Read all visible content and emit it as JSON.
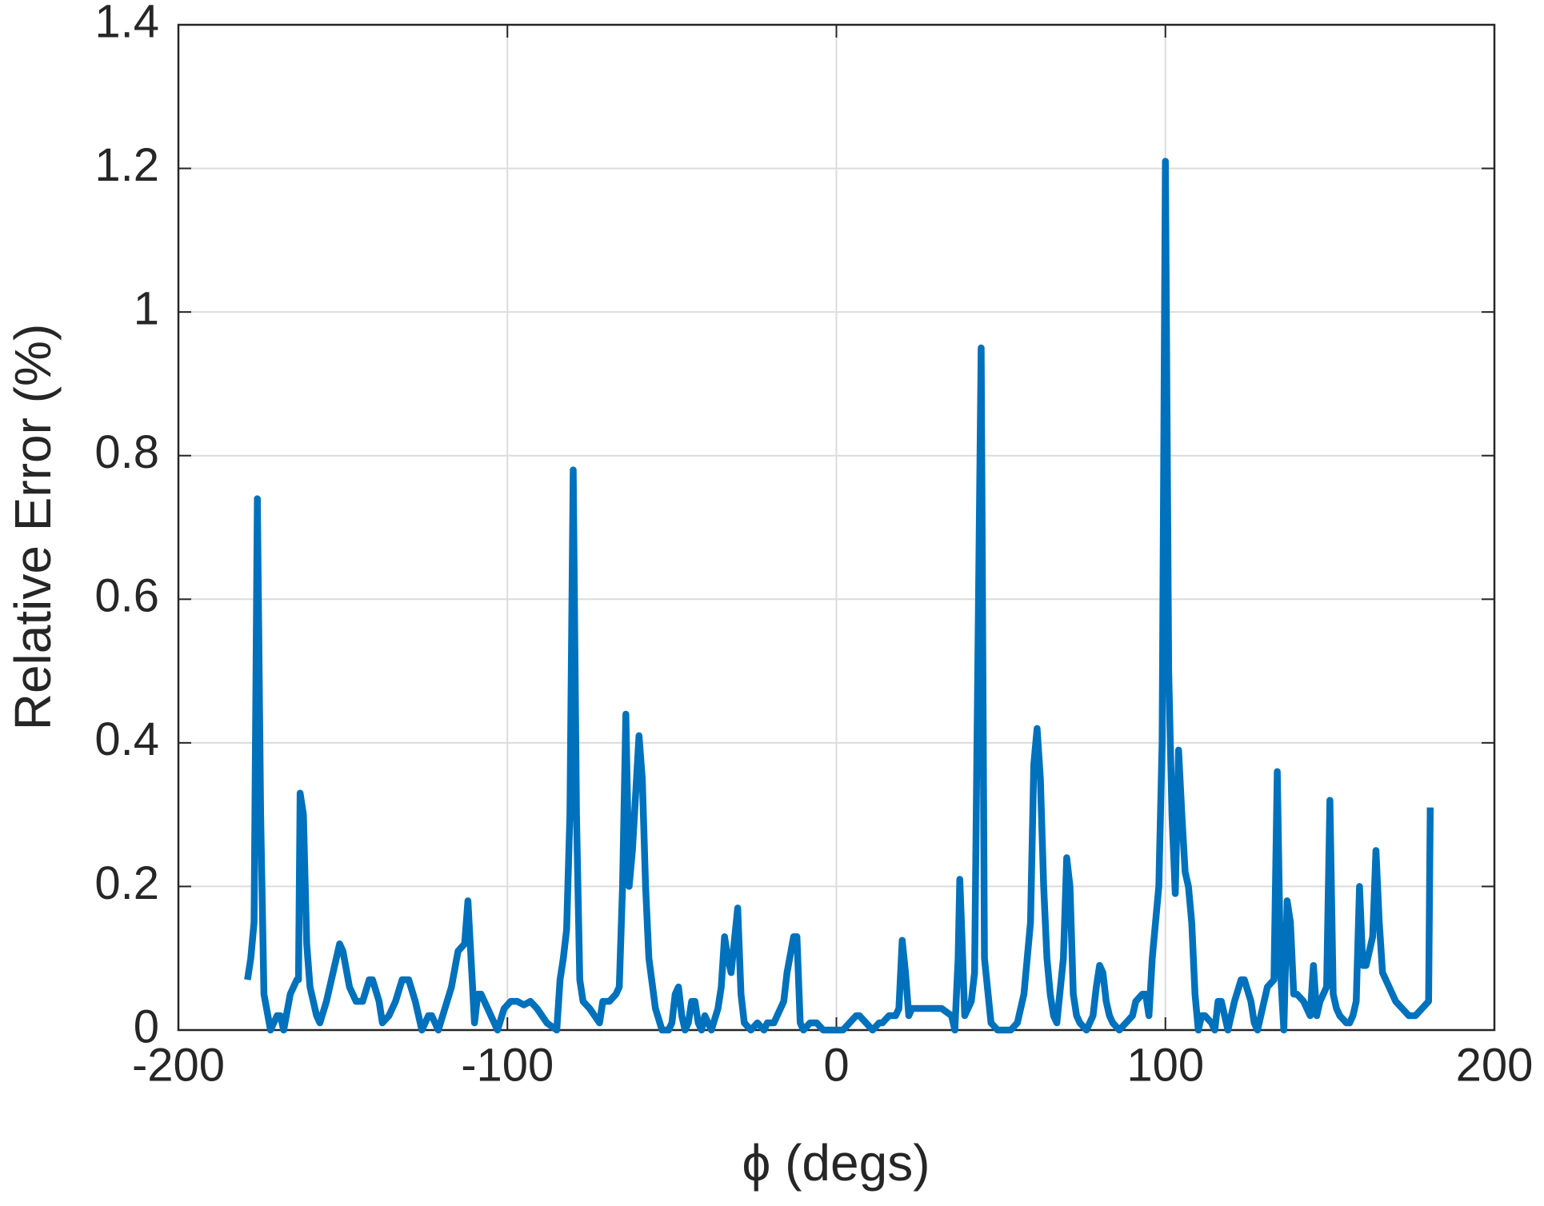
{
  "chart_data": {
    "type": "line",
    "x_label": "ϕ (degs)",
    "y_label": "Relative Error (%)",
    "xlim": [
      -200,
      200
    ],
    "ylim": [
      0,
      1.4
    ],
    "xticks": [
      -200,
      -100,
      0,
      100,
      200
    ],
    "yticks": [
      0,
      0.2,
      0.4,
      0.6,
      0.8,
      1,
      1.2,
      1.4
    ],
    "grid": true,
    "series": [
      {
        "color": "#0072bd",
        "x": [
          -179,
          -178,
          -177,
          -176,
          -175,
          -174,
          -172,
          -170,
          -169,
          -168,
          -166,
          -164,
          -163.5,
          -163,
          -162,
          -161,
          -160,
          -158,
          -157,
          -155,
          -153,
          -151,
          -150,
          -148,
          -146,
          -144,
          -142,
          -141,
          -139,
          -138,
          -136,
          -134,
          -132,
          -130,
          -128,
          -126,
          -124,
          -123,
          -121,
          -119,
          -117,
          -115,
          -113,
          -112,
          -110,
          -109,
          -108,
          -106,
          -103,
          -101,
          -99,
          -97,
          -95,
          -93,
          -91,
          -88,
          -85,
          -84,
          -83,
          -82,
          -81,
          -80,
          -79,
          -78,
          -77,
          -75,
          -72,
          -71,
          -69,
          -67,
          -66,
          -65,
          -64,
          -63,
          -62,
          -60,
          -59,
          -58,
          -57,
          -55,
          -53,
          -51,
          -50,
          -49,
          -48,
          -47,
          -46,
          -45,
          -44,
          -43,
          -42,
          -41,
          -40,
          -39,
          -38,
          -36,
          -35,
          -34,
          -33,
          -32,
          -30,
          -29,
          -28,
          -26,
          -24,
          -22,
          -21,
          -19,
          -18,
          -16,
          -15,
          -13,
          -12,
          -11,
          -10,
          -8,
          -6,
          -4,
          -2,
          0,
          2,
          4,
          6,
          7,
          9,
          11,
          13,
          14,
          16,
          18,
          19,
          20,
          21,
          22,
          23,
          26,
          32,
          35,
          36,
          37,
          37.5,
          38,
          39,
          41,
          42,
          44,
          45,
          47,
          49,
          51,
          53,
          55,
          57,
          59,
          60,
          61,
          62,
          63,
          64,
          65,
          66,
          67,
          69,
          70,
          71,
          72,
          73,
          74,
          76,
          78,
          79,
          80,
          81,
          82,
          83,
          84,
          86,
          88,
          90,
          91,
          93,
          94,
          95,
          96,
          98,
          99,
          100,
          101,
          102,
          103,
          104,
          105,
          106,
          107,
          108,
          109,
          110,
          111,
          112,
          114,
          115,
          116,
          117,
          118,
          119,
          120,
          121,
          123,
          124,
          126,
          127,
          128,
          129,
          131,
          133,
          134,
          135,
          136,
          137,
          138,
          139,
          140,
          142,
          143,
          144,
          145,
          146,
          147,
          148,
          149,
          150,
          151,
          152,
          153,
          155,
          156,
          157,
          158,
          159,
          160,
          161,
          163,
          164,
          165,
          166,
          168,
          169,
          170,
          172,
          174,
          176,
          178,
          180,
          180.5
        ],
        "values": [
          0.07,
          0.1,
          0.15,
          0.74,
          0.3,
          0.05,
          0,
          0.02,
          0.02,
          0,
          0.05,
          0.07,
          0.07,
          0.33,
          0.3,
          0.12,
          0.06,
          0.02,
          0.01,
          0.04,
          0.08,
          0.12,
          0.11,
          0.06,
          0.04,
          0.04,
          0.07,
          0.07,
          0.04,
          0.01,
          0.02,
          0.04,
          0.07,
          0.07,
          0.04,
          0,
          0.02,
          0.02,
          0,
          0.03,
          0.06,
          0.11,
          0.12,
          0.18,
          0.01,
          0.05,
          0.05,
          0.03,
          0,
          0.03,
          0.04,
          0.04,
          0.035,
          0.04,
          0.03,
          0.01,
          0,
          0.07,
          0.1,
          0.14,
          0.3,
          0.78,
          0.3,
          0.07,
          0.04,
          0.03,
          0.01,
          0.04,
          0.04,
          0.05,
          0.06,
          0.2,
          0.44,
          0.2,
          0.25,
          0.41,
          0.35,
          0.2,
          0.1,
          0.03,
          0,
          0,
          0.01,
          0.05,
          0.06,
          0.02,
          0,
          0.01,
          0.04,
          0.04,
          0.01,
          0,
          0.02,
          0.01,
          0,
          0.03,
          0.06,
          0.13,
          0.1,
          0.08,
          0.17,
          0.05,
          0.01,
          0,
          0.01,
          0,
          0.01,
          0.01,
          0.02,
          0.04,
          0.08,
          0.13,
          0.13,
          0.01,
          0,
          0.01,
          0.01,
          0,
          0,
          0,
          0,
          0.01,
          0.02,
          0.02,
          0.01,
          0,
          0.01,
          0.01,
          0.02,
          0.02,
          0.03,
          0.125,
          0.08,
          0.02,
          0.03,
          0.03,
          0.03,
          0.02,
          0,
          0.1,
          0.21,
          0.15,
          0.02,
          0.04,
          0.08,
          0.95,
          0.1,
          0.01,
          0,
          0,
          0,
          0.01,
          0.05,
          0.15,
          0.37,
          0.42,
          0.35,
          0.2,
          0.1,
          0.05,
          0.02,
          0.01,
          0.1,
          0.24,
          0.2,
          0.05,
          0.02,
          0.01,
          0,
          0.02,
          0.06,
          0.09,
          0.08,
          0.04,
          0.02,
          0.01,
          0,
          0.01,
          0.02,
          0.04,
          0.05,
          0.05,
          0.02,
          0.1,
          0.2,
          0.4,
          1.21,
          0.5,
          0.3,
          0.19,
          0.39,
          0.3,
          0.22,
          0.2,
          0.15,
          0.05,
          0,
          0.02,
          0.02,
          0.01,
          0,
          0.04,
          0.04,
          0.02,
          0,
          0.02,
          0.04,
          0.07,
          0.07,
          0.04,
          0.01,
          0,
          0.02,
          0.06,
          0.07,
          0.36,
          0.08,
          0,
          0.18,
          0.15,
          0.05,
          0.05,
          0.04,
          0.03,
          0.02,
          0.09,
          0.02,
          0.04,
          0.05,
          0.06,
          0.32,
          0.05,
          0.03,
          0.02,
          0.01,
          0.01,
          0.02,
          0.04,
          0.2,
          0.09,
          0.09,
          0.13,
          0.25,
          0.15,
          0.08,
          0.06,
          0.05,
          0.04,
          0.03,
          0.02,
          0.02,
          0.03,
          0.04,
          0.31
        ]
      }
    ]
  }
}
